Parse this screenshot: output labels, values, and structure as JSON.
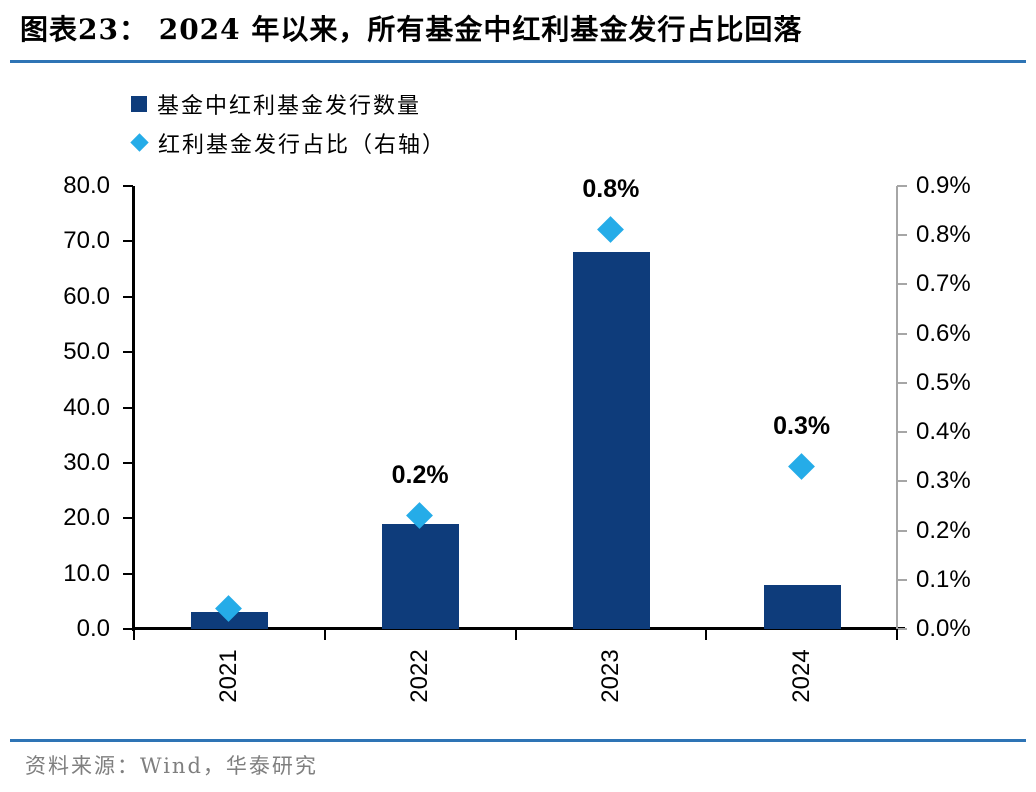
{
  "header": {
    "title": "图表23：  2024 年以来，所有基金中红利基金发行占比回落"
  },
  "legend": {
    "position": "top-left",
    "items": [
      {
        "label": "基金中红利基金发行数量",
        "marker": "square",
        "color": "#0E3C7B"
      },
      {
        "label": "红利基金发行占比（右轴）",
        "marker": "diamond",
        "color": "#25ACE8"
      }
    ]
  },
  "chart_data": {
    "type": "bar",
    "categories": [
      "2021",
      "2022",
      "2023",
      "2024"
    ],
    "series": [
      {
        "name": "基金中红利基金发行数量",
        "type": "bar",
        "axis": "left",
        "color": "#0E3C7B",
        "values": [
          3,
          19,
          68,
          8
        ]
      },
      {
        "name": "红利基金发行占比（右轴）",
        "type": "scatter",
        "axis": "right",
        "color": "#25ACE8",
        "values_pct": [
          0.04,
          0.23,
          0.81,
          0.33
        ],
        "point_labels": [
          "",
          "0.2%",
          "0.8%",
          "0.3%"
        ]
      }
    ],
    "left_axis": {
      "min": 0,
      "max": 80,
      "step": 10,
      "tick_labels": [
        "80.0",
        "70.0",
        "60.0",
        "50.0",
        "40.0",
        "30.0",
        "20.0",
        "10.0",
        "0.0"
      ],
      "color": "#000000"
    },
    "right_axis": {
      "min": 0,
      "max": 0.9,
      "step": 0.1,
      "tick_labels": [
        "0.9%",
        "0.8%",
        "0.7%",
        "0.6%",
        "0.5%",
        "0.4%",
        "0.3%",
        "0.2%",
        "0.1%",
        "0.0%"
      ],
      "color": "#A6A6A6"
    },
    "grid": false,
    "legend_position": "top-left",
    "title": "2024 年以来，所有基金中红利基金发行占比回落"
  },
  "style": {
    "accent_rule_color": "#2E74B5",
    "x_axis_color": "#000000"
  },
  "footer": {
    "source": "资料来源：Wind，华泰研究"
  }
}
